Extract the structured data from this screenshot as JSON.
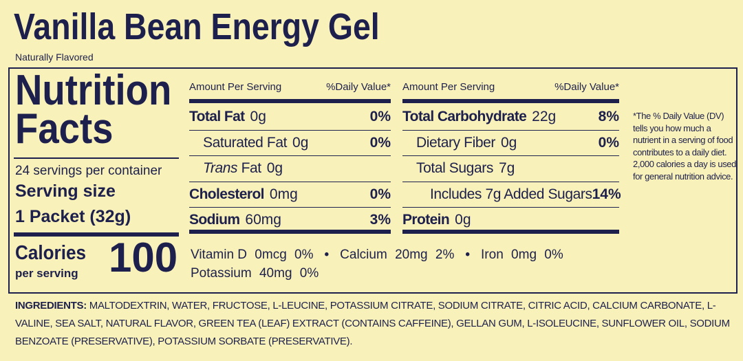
{
  "title": "Vanilla Bean Energy Gel",
  "subtitle": "Naturally Flavored",
  "facts": {
    "heading_1": "Nutrition",
    "heading_2": "Facts",
    "servings": "24 servings per container",
    "serving_size_label": "Serving size",
    "serving_size": "1 Packet (32g)",
    "calories_label": "Calories",
    "calories_sub": "per serving",
    "calories": 100
  },
  "columns": [
    {
      "header": [
        "Amount Per Serving",
        "%Daily Value*"
      ],
      "rows": [
        {
          "name": "Total Fat",
          "amount": "0g",
          "dv": "0%",
          "bold": true,
          "indent": 0
        },
        {
          "name": "Saturated Fat",
          "amount": "0g",
          "dv": "0%",
          "bold": false,
          "indent": 1
        },
        {
          "italic": "Trans",
          "name": "Fat",
          "amount": "0g",
          "bold": false,
          "indent": 1
        },
        {
          "name": "Cholesterol",
          "amount": "0mg",
          "dv": "0%",
          "bold": true,
          "indent": 0
        },
        {
          "name": "Sodium",
          "amount": "60mg",
          "dv": "3%",
          "bold": true,
          "indent": 0
        }
      ]
    },
    {
      "header": [
        "Amount Per Serving",
        "%Daily Value*"
      ],
      "rows": [
        {
          "name": "Total Carbohydrate",
          "amount": "22g",
          "dv": "8%",
          "bold": true,
          "indent": 0
        },
        {
          "name": "Dietary Fiber",
          "amount": "0g",
          "dv": "0%",
          "bold": false,
          "indent": 1
        },
        {
          "name": "Total Sugars",
          "amount": "7g",
          "bold": false,
          "indent": 1
        },
        {
          "name": "Includes 7g Added Sugars",
          "dv": "14%",
          "bold": false,
          "indent": 2
        },
        {
          "name": "Protein",
          "amount": "0g",
          "bold": true,
          "indent": 0
        }
      ]
    }
  ],
  "micros": [
    {
      "name": "Vitamin D",
      "amount": "0mcg",
      "dv": "0%"
    },
    {
      "name": "Calcium",
      "amount": "20mg",
      "dv": "2%"
    },
    {
      "name": "Iron",
      "amount": "0mg",
      "dv": "0%"
    },
    {
      "name": "Potassium",
      "amount": "40mg",
      "dv": "0%"
    }
  ],
  "footnote": "*The % Daily Value (DV) tells you how much a nutrient in a serving of food contributes to a daily diet. 2,000 calories a day is used for general nutrition advice.",
  "ingredients_label": "INGREDIENTS:",
  "ingredients": "MALTODEXTRIN, WATER, FRUCTOSE, L-LEUCINE, POTASSIUM CITRATE, SODIUM CITRATE, CITRIC ACID, CALCIUM CARBONATE, L-VALINE, SEA SALT, NATURAL FLAVOR, GREEN TEA (LEAF) EXTRACT (CONTAINS CAFFEINE), GELLAN GUM, L-ISOLEUCINE, SUNFLOWER OIL, SODIUM BENZOATE (PRESERVATIVE), POTASSIUM SORBATE (PRESERVATIVE)."
}
